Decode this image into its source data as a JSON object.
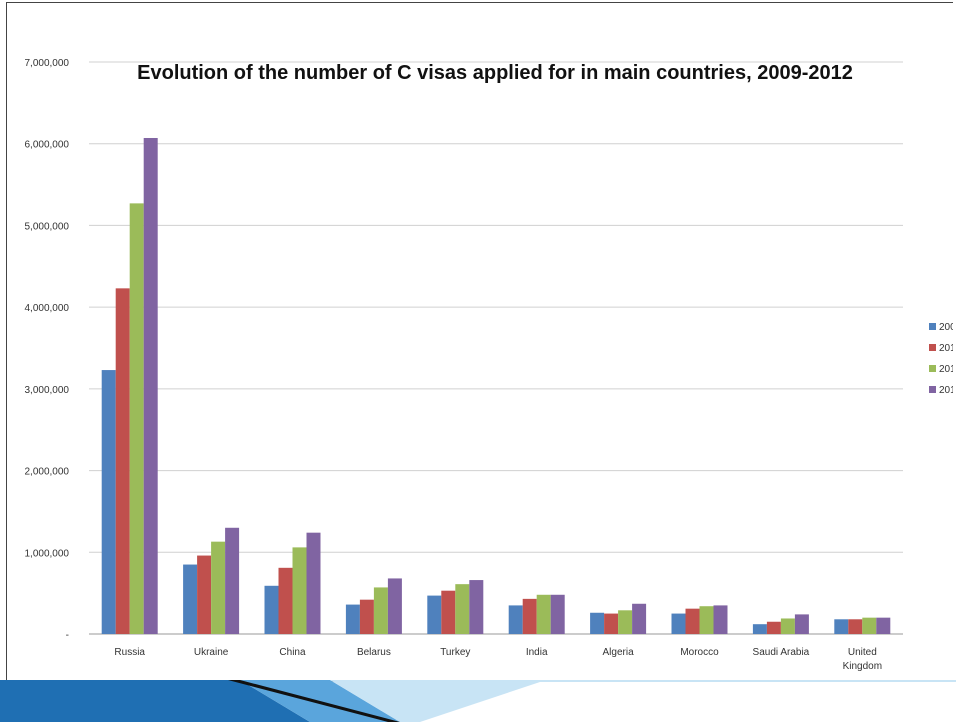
{
  "chart_data": {
    "type": "bar",
    "title": "Evolution of the number of C visas applied for in main countries, 2009-2012",
    "categories": [
      "Russia",
      "Ukraine",
      "China",
      "Belarus",
      "Turkey",
      "India",
      "Algeria",
      "Morocco",
      "Saudi Arabia",
      "United Kingdom"
    ],
    "category_lines": [
      [
        "Russia"
      ],
      [
        "Ukraine"
      ],
      [
        "China"
      ],
      [
        "Belarus"
      ],
      [
        "Turkey"
      ],
      [
        "India"
      ],
      [
        "Algeria"
      ],
      [
        "Morocco"
      ],
      [
        "Saudi Arabia"
      ],
      [
        "United",
        "Kingdom"
      ]
    ],
    "series": [
      {
        "name": "200",
        "color": "#4f81bd",
        "values": [
          3230000,
          850000,
          590000,
          360000,
          470000,
          350000,
          260000,
          250000,
          120000,
          180000
        ]
      },
      {
        "name": "201",
        "color": "#c0504d",
        "values": [
          4230000,
          960000,
          810000,
          420000,
          530000,
          430000,
          250000,
          310000,
          150000,
          180000
        ]
      },
      {
        "name": "201",
        "color": "#9bbb59",
        "values": [
          5270000,
          1130000,
          1060000,
          570000,
          610000,
          480000,
          290000,
          340000,
          190000,
          200000
        ]
      },
      {
        "name": "201",
        "color": "#8064a2",
        "values": [
          6070000,
          1300000,
          1240000,
          680000,
          660000,
          480000,
          370000,
          350000,
          240000,
          200000
        ]
      }
    ],
    "y_ticks": [
      0,
      1000000,
      2000000,
      3000000,
      4000000,
      5000000,
      6000000,
      7000000
    ],
    "y_tick_labels": [
      "-",
      "1,000,000",
      "2,000,000",
      "3,000,000",
      "4,000,000",
      "5,000,000",
      "6,000,000",
      "7,000,000"
    ],
    "ylim": [
      0,
      7000000
    ],
    "xlabel": "",
    "ylabel": "",
    "grid": true,
    "legend_position": "right"
  },
  "decor": {
    "band_colors": [
      "#1f6fb3",
      "#5aa5dc",
      "#c8e4f5",
      "#111111"
    ]
  }
}
